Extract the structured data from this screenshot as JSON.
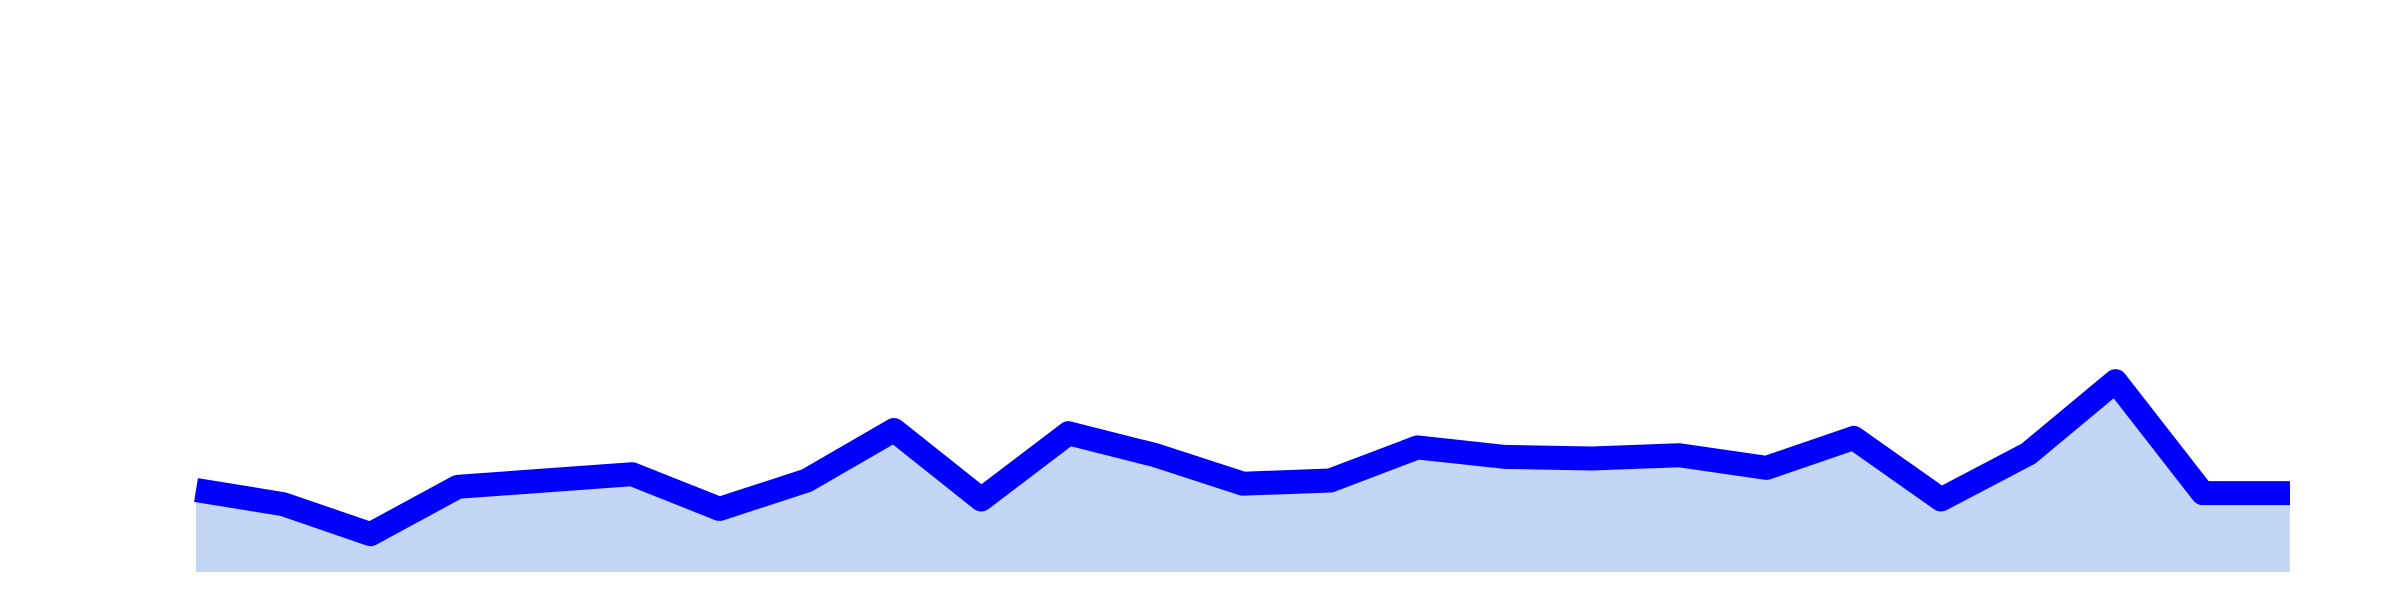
{
  "chart_data": {
    "type": "area",
    "title": "",
    "xlabel": "",
    "ylabel": "",
    "x": [
      0,
      1,
      2,
      3,
      4,
      5,
      6,
      7,
      8,
      9,
      10,
      11,
      12,
      13,
      14,
      15,
      16,
      17,
      18,
      19,
      20,
      21,
      22,
      23,
      24
    ],
    "series": [
      {
        "values": [
          10.2,
          9.3,
          7.4,
          10.4,
          10.8,
          11.2,
          9.0,
          10.8,
          14.0,
          9.6,
          13.8,
          12.4,
          10.6,
          10.8,
          12.9,
          12.3,
          12.2,
          12.4,
          11.6,
          13.5,
          9.6,
          12.5,
          17.1,
          10.0,
          10.0
        ],
        "line_color": "#0000ff",
        "fill_color": "#c3d6f5"
      }
    ],
    "xlim": [
      0,
      24
    ],
    "ylim": [
      5,
      40
    ],
    "grid": false,
    "axes_visible": false,
    "legend": "none"
  }
}
